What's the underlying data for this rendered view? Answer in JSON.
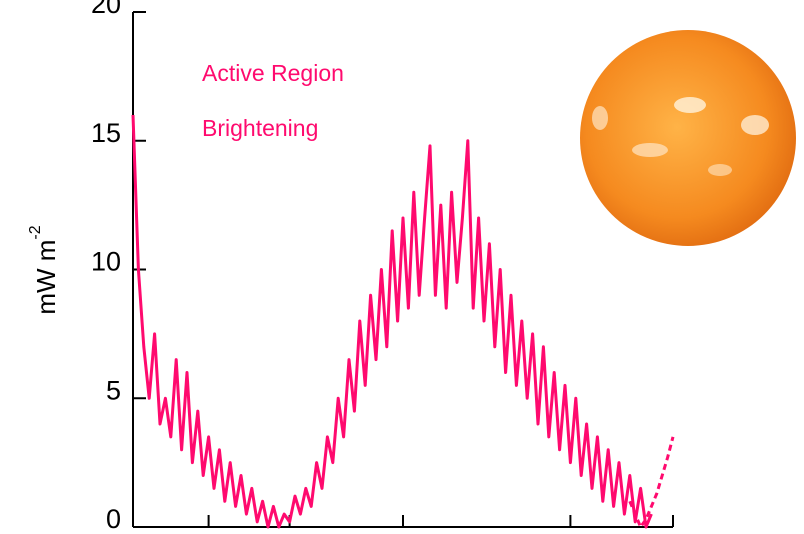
{
  "chart_data": {
    "type": "line",
    "annotation": [
      "Active Region",
      "Brightening"
    ],
    "ylabel": {
      "text": "mW m",
      "superscript": "-2"
    },
    "xlim": [
      0,
      100
    ],
    "xticks": [
      0,
      14,
      29,
      50,
      81,
      100
    ],
    "ylim": [
      0,
      20
    ],
    "yticks": [
      0,
      5,
      10,
      15,
      20
    ],
    "series": [
      {
        "color": "#ff0a6e",
        "style": "solid",
        "x": [
          0,
          1,
          2,
          3,
          4,
          5,
          6,
          7,
          8,
          9,
          10,
          11,
          12,
          13,
          14,
          15,
          16,
          17,
          18,
          19,
          20,
          21,
          22,
          23,
          24,
          25,
          26,
          27,
          28,
          29,
          30,
          31,
          32,
          33,
          34,
          35,
          36,
          37,
          38,
          39,
          40,
          41,
          42,
          43,
          44,
          45,
          46,
          47,
          48,
          49,
          50,
          51,
          52,
          53,
          54,
          55,
          56,
          57,
          58,
          59,
          60,
          61,
          62,
          63,
          64,
          65,
          66,
          67,
          68,
          69,
          70,
          71,
          72,
          73,
          74,
          75,
          76,
          77,
          78,
          79,
          80,
          81,
          82,
          83,
          84,
          85,
          86,
          87,
          88,
          89,
          90,
          91,
          92,
          93,
          94,
          95,
          96
        ],
        "values": [
          16,
          10,
          7,
          5,
          7.5,
          4,
          5,
          3.5,
          6.5,
          3,
          6,
          2.5,
          4.5,
          2,
          3.5,
          1.5,
          3,
          1,
          2.5,
          0.8,
          2,
          0.5,
          1.5,
          0.2,
          1,
          0,
          0.8,
          0,
          0.5,
          0.2,
          1.2,
          0.5,
          1.5,
          0.8,
          2.5,
          1.5,
          3.5,
          2.5,
          5,
          3.5,
          6.5,
          4.5,
          8,
          5.5,
          9,
          6.5,
          10,
          7,
          11.5,
          8,
          12,
          8.5,
          13,
          9,
          12,
          14.8,
          9,
          12.5,
          8.5,
          13,
          9.5,
          12,
          15,
          8.5,
          12,
          8,
          11,
          7,
          10,
          6,
          9,
          5.5,
          8,
          5,
          7.5,
          4,
          7,
          3.5,
          6,
          3,
          5.5,
          2.5,
          5,
          2,
          4,
          1.5,
          3.5,
          1,
          3,
          0.8,
          2.5,
          0.5,
          2,
          0.2,
          1.5,
          0,
          0.5
        ]
      },
      {
        "color": "#ff0a6e",
        "style": "dashed",
        "x": [
          92,
          93,
          94,
          95,
          96,
          97,
          98,
          99,
          100
        ],
        "values": [
          1,
          0.5,
          0,
          0.3,
          0.8,
          1.3,
          2,
          2.7,
          3.5
        ]
      }
    ]
  }
}
